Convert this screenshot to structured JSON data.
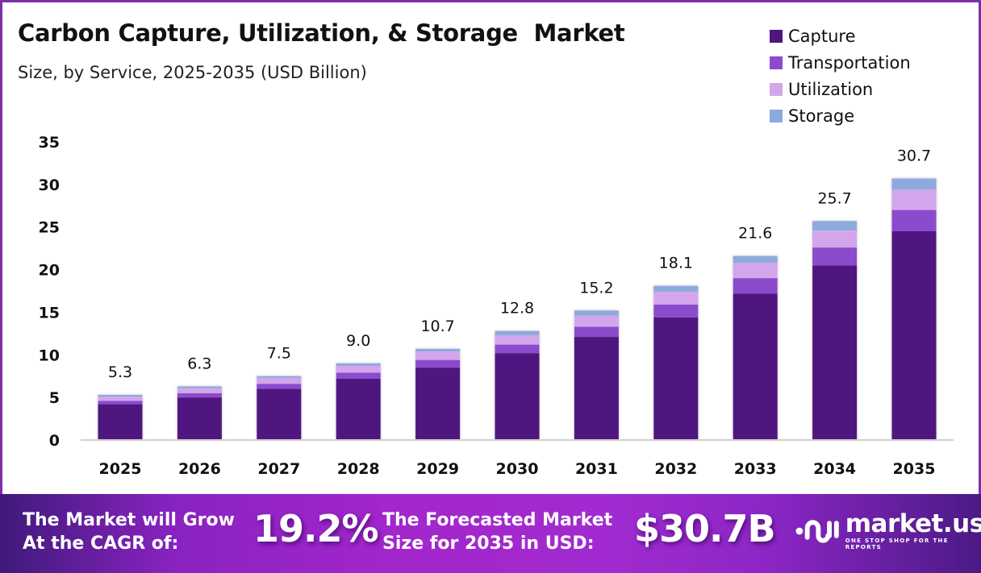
{
  "header": {
    "title": "Carbon Capture, Utilization, & Storage  Market",
    "subtitle": "Size, by Service, 2025-2035 (USD Billion)"
  },
  "colors": {
    "capture": "#4f1680",
    "transportation": "#8b4bcc",
    "utilization": "#d3a6ec",
    "storage": "#8eaadd",
    "frame": "#7b2fa8",
    "axis": "#d0d0d0"
  },
  "chart_data": {
    "type": "bar",
    "stacked": true,
    "title": "Carbon Capture, Utilization, & Storage  Market",
    "subtitle": "Size, by Service, 2025-2035 (USD Billion)",
    "xlabel": "",
    "ylabel": "",
    "ylim": [
      0,
      35
    ],
    "yticks": [
      0,
      5,
      10,
      15,
      20,
      25,
      30,
      35
    ],
    "grid": false,
    "legend_position": "top-right",
    "categories": [
      "2025",
      "2026",
      "2027",
      "2028",
      "2029",
      "2030",
      "2031",
      "2032",
      "2033",
      "2034",
      "2035"
    ],
    "totals": [
      5.3,
      6.3,
      7.5,
      9.0,
      10.7,
      12.8,
      15.2,
      18.1,
      21.6,
      25.7,
      30.7
    ],
    "total_labels": [
      "5.3",
      "6.3",
      "7.5",
      "9.0",
      "10.7",
      "12.8",
      "15.2",
      "18.1",
      "21.6",
      "25.7",
      "30.7"
    ],
    "series": [
      {
        "name": "Capture",
        "values": [
          4.2,
          5.0,
          6.0,
          7.2,
          8.5,
          10.2,
          12.1,
          14.4,
          17.2,
          20.5,
          24.5
        ]
      },
      {
        "name": "Transportation",
        "values": [
          0.4,
          0.5,
          0.6,
          0.7,
          0.9,
          1.0,
          1.2,
          1.5,
          1.8,
          2.1,
          2.5
        ]
      },
      {
        "name": "Utilization",
        "values": [
          0.5,
          0.6,
          0.7,
          0.8,
          1.0,
          1.1,
          1.3,
          1.5,
          1.8,
          2.0,
          2.4
        ]
      },
      {
        "name": "Storage",
        "values": [
          0.2,
          0.2,
          0.2,
          0.3,
          0.3,
          0.5,
          0.6,
          0.7,
          0.8,
          1.1,
          1.3
        ]
      }
    ]
  },
  "legend": [
    {
      "label": "Capture",
      "color": "#4f1680"
    },
    {
      "label": "Transportation",
      "color": "#8b4bcc"
    },
    {
      "label": "Utilization",
      "color": "#d3a6ec"
    },
    {
      "label": "Storage",
      "color": "#8eaadd"
    }
  ],
  "banner": {
    "cagr_text_line1": "The Market will Grow",
    "cagr_text_line2": "At the CAGR of:",
    "cagr_value": "19.2%",
    "forecast_text_line1": "The Forecasted Market",
    "forecast_text_line2": "Size for 2035 in USD:",
    "forecast_value": "$30.7B",
    "logo_name": "market.us",
    "logo_tagline": "ONE STOP SHOP FOR THE REPORTS"
  }
}
